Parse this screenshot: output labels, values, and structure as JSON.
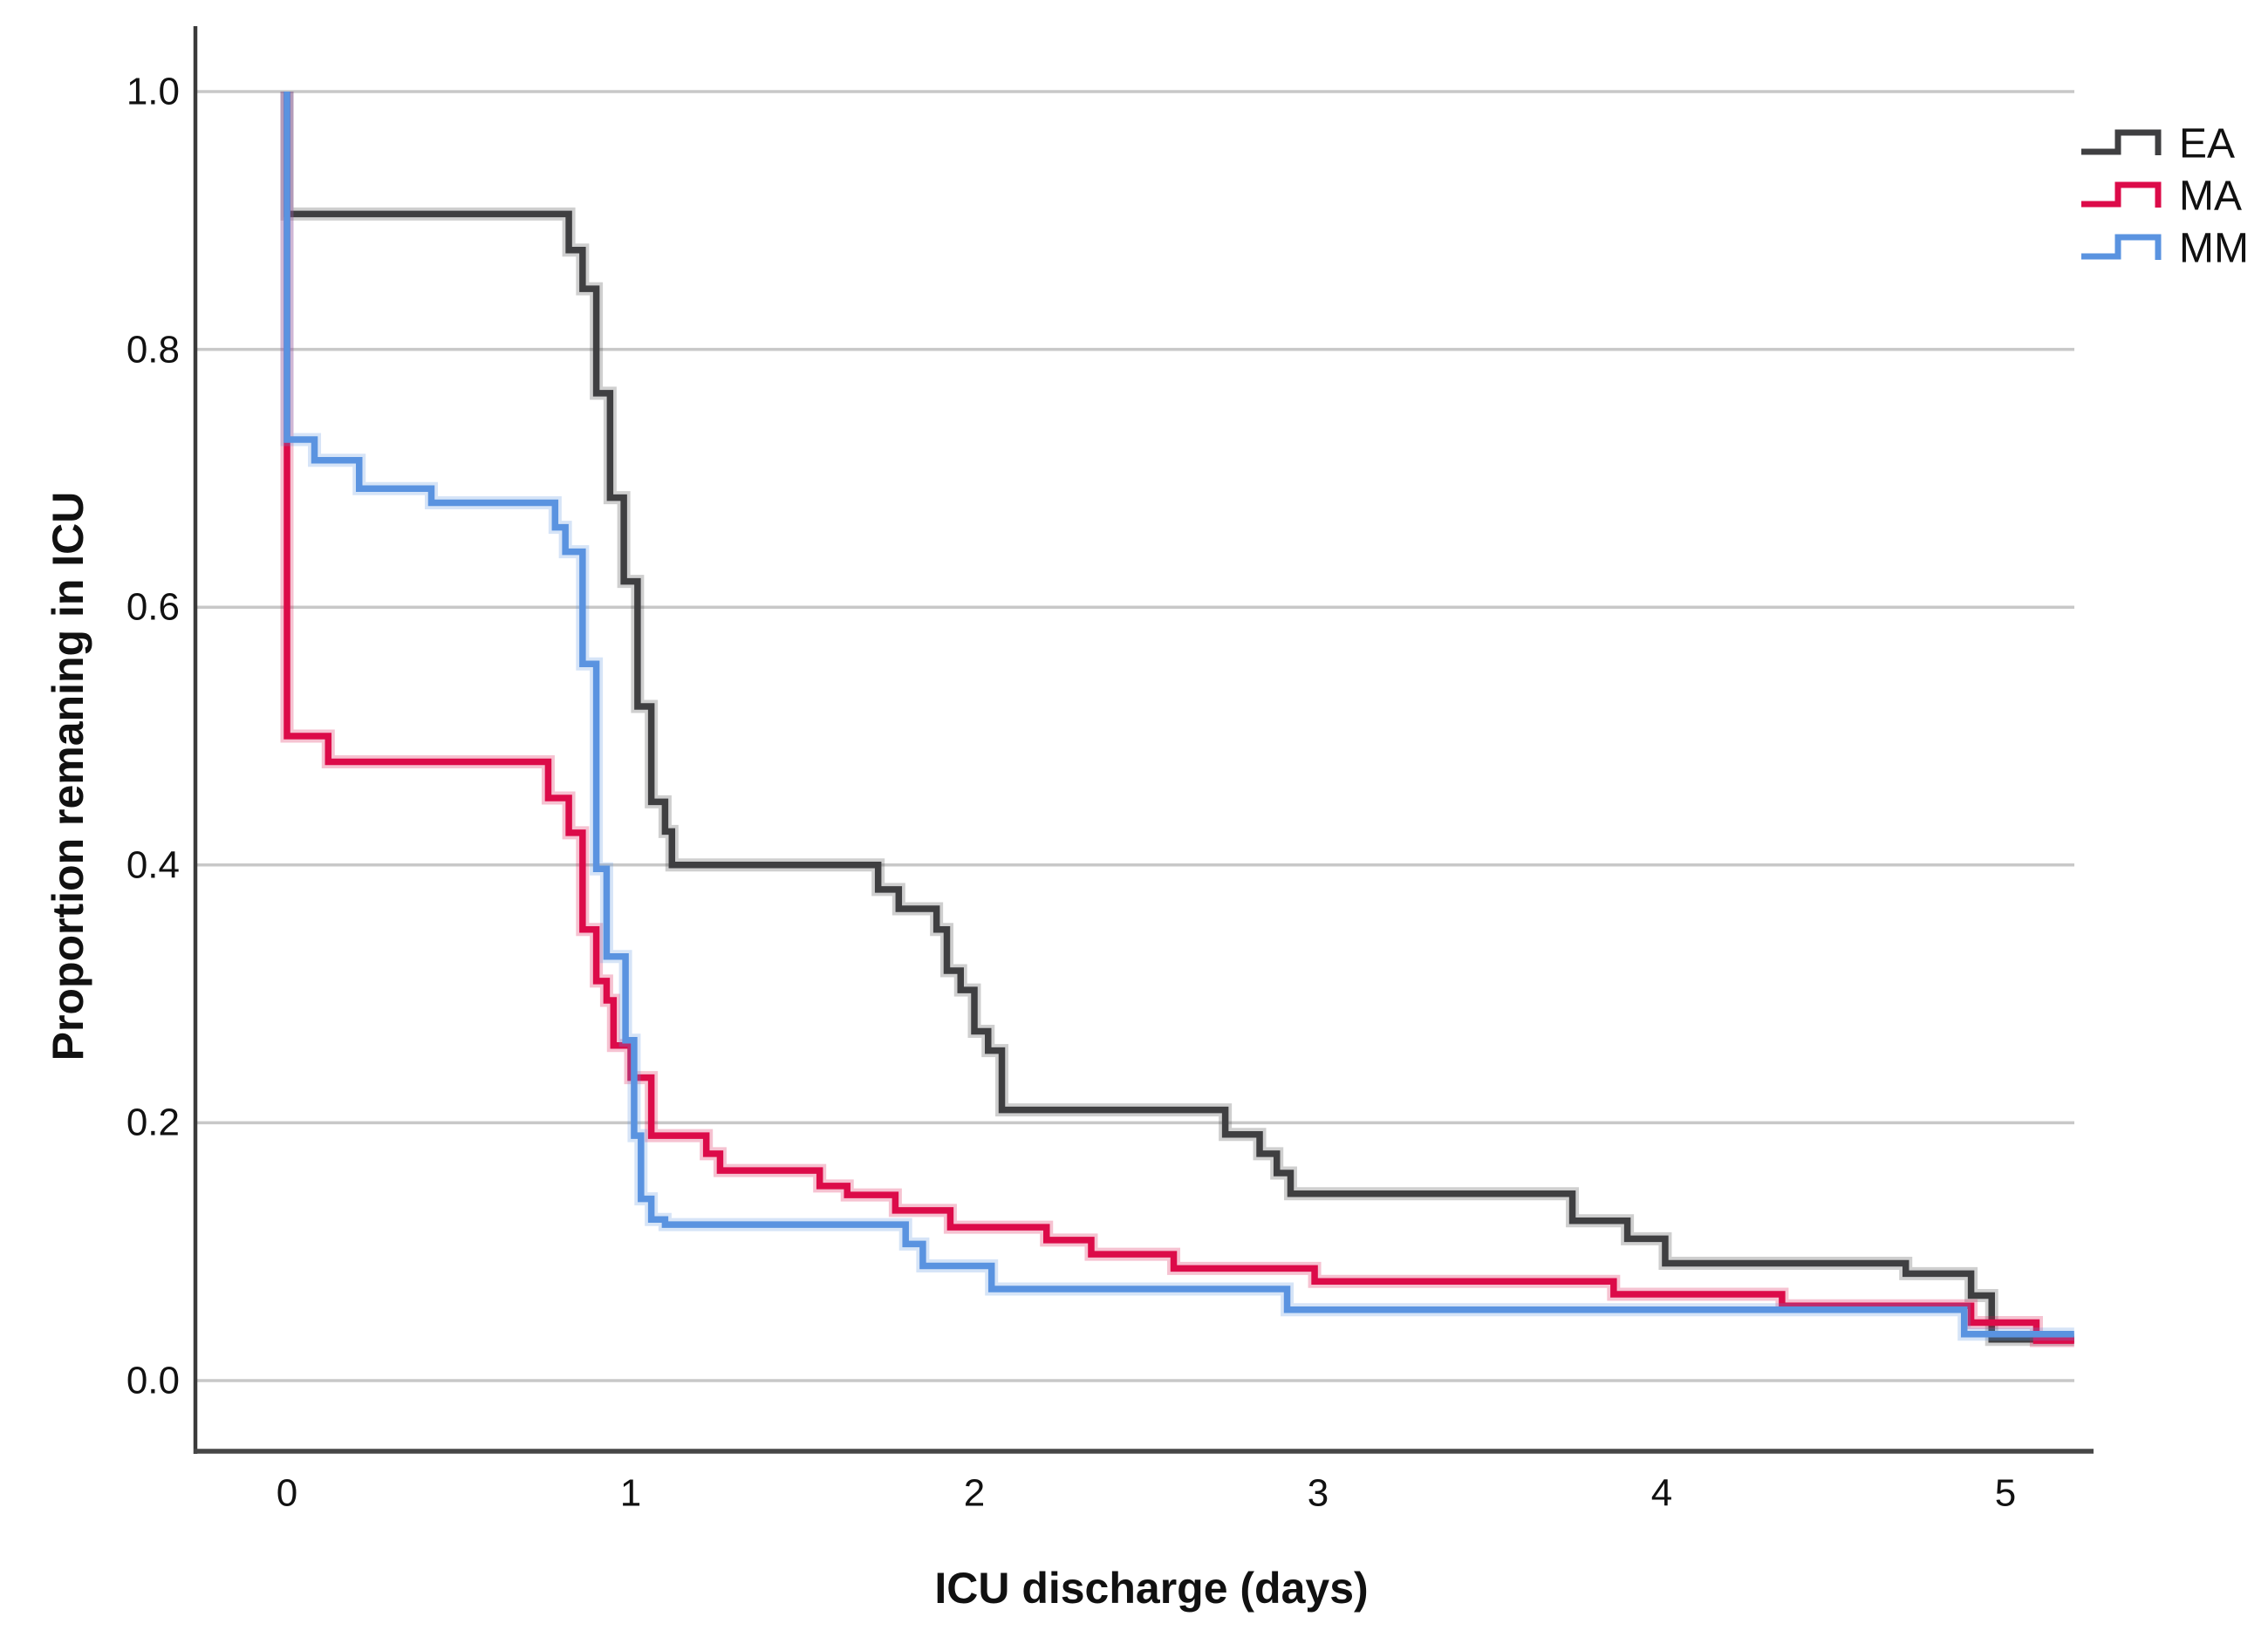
{
  "figure": {
    "y_axis_title": "Proportion remaning in ICU",
    "x_axis_title": "ICU discharge (days)",
    "y_ticks": [
      "1.0",
      "0.8",
      "0.6",
      "0.4",
      "0.2",
      "0.0"
    ],
    "x_ticks": [
      "0",
      "1",
      "2",
      "3",
      "4",
      "5"
    ],
    "colors": {
      "background": "#ffffff",
      "gridline": "#c8c8c8",
      "y_axis_line": "#3a3a3a",
      "x_axis_line": "#474747",
      "text": "#111111"
    }
  },
  "chart_data": {
    "type": "line",
    "subtype": "kaplan_meier_step",
    "title": "",
    "xlabel": "ICU discharge (days)",
    "ylabel": "Proportion remaning in ICU",
    "x_tick_values": [
      0,
      1,
      2,
      3,
      4,
      5
    ],
    "y_tick_values": [
      1.0,
      0.8,
      0.6,
      0.4,
      0.2,
      0.0
    ],
    "xlim": [
      -0.27,
      5.3
    ],
    "ylim": [
      -0.055,
      1.05
    ],
    "grid": "horizontal-only",
    "legend_position": "top-right",
    "legend_entries": [
      "EA",
      "MA",
      "MM"
    ],
    "series": [
      {
        "name": "EA",
        "color": "#3f3f41",
        "start": [
          0,
          1.0
        ],
        "end_x": 5.2,
        "steps": [
          [
            0,
            0.905
          ],
          [
            0.82,
            0.877
          ],
          [
            0.86,
            0.847
          ],
          [
            0.9,
            0.766
          ],
          [
            0.94,
            0.685
          ],
          [
            0.98,
            0.62
          ],
          [
            1.02,
            0.523
          ],
          [
            1.06,
            0.449
          ],
          [
            1.1,
            0.426
          ],
          [
            1.12,
            0.4
          ],
          [
            1.72,
            0.381
          ],
          [
            1.78,
            0.366
          ],
          [
            1.89,
            0.35
          ],
          [
            1.92,
            0.318
          ],
          [
            1.96,
            0.303
          ],
          [
            2.0,
            0.271
          ],
          [
            2.04,
            0.256
          ],
          [
            2.08,
            0.21
          ],
          [
            2.73,
            0.191
          ],
          [
            2.83,
            0.176
          ],
          [
            2.88,
            0.161
          ],
          [
            2.92,
            0.145
          ],
          [
            3.74,
            0.124
          ],
          [
            3.9,
            0.11
          ],
          [
            4.01,
            0.091
          ],
          [
            4.71,
            0.083
          ],
          [
            4.9,
            0.066
          ],
          [
            4.96,
            0.032
          ]
        ]
      },
      {
        "name": "MA",
        "color": "#dc0b49",
        "start": [
          0,
          1.0
        ],
        "end_x": 5.2,
        "steps": [
          [
            0,
            0.5
          ],
          [
            0.12,
            0.48
          ],
          [
            0.76,
            0.452
          ],
          [
            0.82,
            0.425
          ],
          [
            0.86,
            0.35
          ],
          [
            0.9,
            0.31
          ],
          [
            0.93,
            0.295
          ],
          [
            0.95,
            0.26
          ],
          [
            1.0,
            0.235
          ],
          [
            1.06,
            0.19
          ],
          [
            1.22,
            0.176
          ],
          [
            1.26,
            0.163
          ],
          [
            1.55,
            0.151
          ],
          [
            1.63,
            0.144
          ],
          [
            1.77,
            0.132
          ],
          [
            1.93,
            0.119
          ],
          [
            2.21,
            0.109
          ],
          [
            2.34,
            0.098
          ],
          [
            2.58,
            0.087
          ],
          [
            2.99,
            0.077
          ],
          [
            3.86,
            0.067
          ],
          [
            4.35,
            0.058
          ],
          [
            4.9,
            0.045
          ],
          [
            5.09,
            0.031
          ]
        ]
      },
      {
        "name": "MM",
        "color": "#5a93e0",
        "start": [
          0,
          1.0
        ],
        "end_x": 5.2,
        "steps": [
          [
            0,
            0.73
          ],
          [
            0.08,
            0.714
          ],
          [
            0.21,
            0.692
          ],
          [
            0.42,
            0.681
          ],
          [
            0.78,
            0.662
          ],
          [
            0.81,
            0.643
          ],
          [
            0.86,
            0.556
          ],
          [
            0.9,
            0.397
          ],
          [
            0.93,
            0.329
          ],
          [
            0.985,
            0.264
          ],
          [
            1.01,
            0.19
          ],
          [
            1.03,
            0.141
          ],
          [
            1.06,
            0.125
          ],
          [
            1.1,
            0.121
          ],
          [
            1.8,
            0.106
          ],
          [
            1.85,
            0.089
          ],
          [
            2.05,
            0.071
          ],
          [
            2.91,
            0.055
          ],
          [
            4.88,
            0.036
          ]
        ]
      }
    ]
  }
}
